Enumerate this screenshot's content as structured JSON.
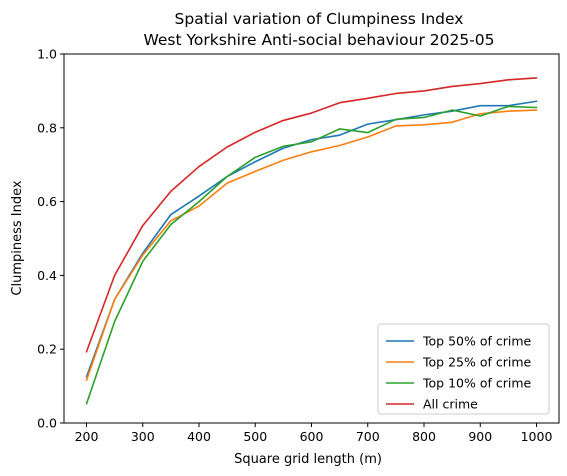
{
  "chart_data": {
    "type": "line",
    "title": "Spatial variation of Clumpiness Index",
    "subtitle": "West Yorkshire Anti-social behaviour 2025-05",
    "xlabel": "Square grid length (m)",
    "ylabel": "Clumpiness Index",
    "xlim": [
      160,
      1040
    ],
    "ylim": [
      0.0,
      1.0
    ],
    "xticks": [
      200,
      300,
      400,
      500,
      600,
      700,
      800,
      900,
      1000
    ],
    "yticks": [
      0.0,
      0.2,
      0.4,
      0.6,
      0.8,
      1.0
    ],
    "ytick_labels": [
      "0.0",
      "0.2",
      "0.4",
      "0.6",
      "0.8",
      "1.0"
    ],
    "grid": false,
    "legend_position": "lower-right",
    "x": [
      200,
      250,
      300,
      350,
      400,
      450,
      500,
      550,
      600,
      650,
      700,
      750,
      800,
      850,
      900,
      950,
      1000
    ],
    "series": [
      {
        "name": "Top 50% of crime",
        "color": "#1f77b4",
        "values": [
          0.125,
          0.335,
          0.46,
          0.565,
          0.615,
          0.668,
          0.708,
          0.745,
          0.768,
          0.78,
          0.81,
          0.822,
          0.835,
          0.845,
          0.86,
          0.86,
          0.872
        ]
      },
      {
        "name": "Top 25% of crime",
        "color": "#ff7f0e",
        "values": [
          0.116,
          0.335,
          0.455,
          0.548,
          0.588,
          0.65,
          0.682,
          0.712,
          0.735,
          0.752,
          0.775,
          0.805,
          0.808,
          0.815,
          0.838,
          0.845,
          0.848
        ]
      },
      {
        "name": "Top 10% of crime",
        "color": "#2ca02c",
        "values": [
          0.052,
          0.275,
          0.438,
          0.538,
          0.6,
          0.668,
          0.72,
          0.75,
          0.762,
          0.797,
          0.787,
          0.823,
          0.828,
          0.848,
          0.832,
          0.858,
          0.855
        ]
      },
      {
        "name": "All crime",
        "color": "#d62728",
        "values": [
          0.193,
          0.4,
          0.535,
          0.628,
          0.695,
          0.748,
          0.788,
          0.82,
          0.84,
          0.868,
          0.88,
          0.893,
          0.9,
          0.912,
          0.92,
          0.93,
          0.935
        ]
      }
    ]
  }
}
